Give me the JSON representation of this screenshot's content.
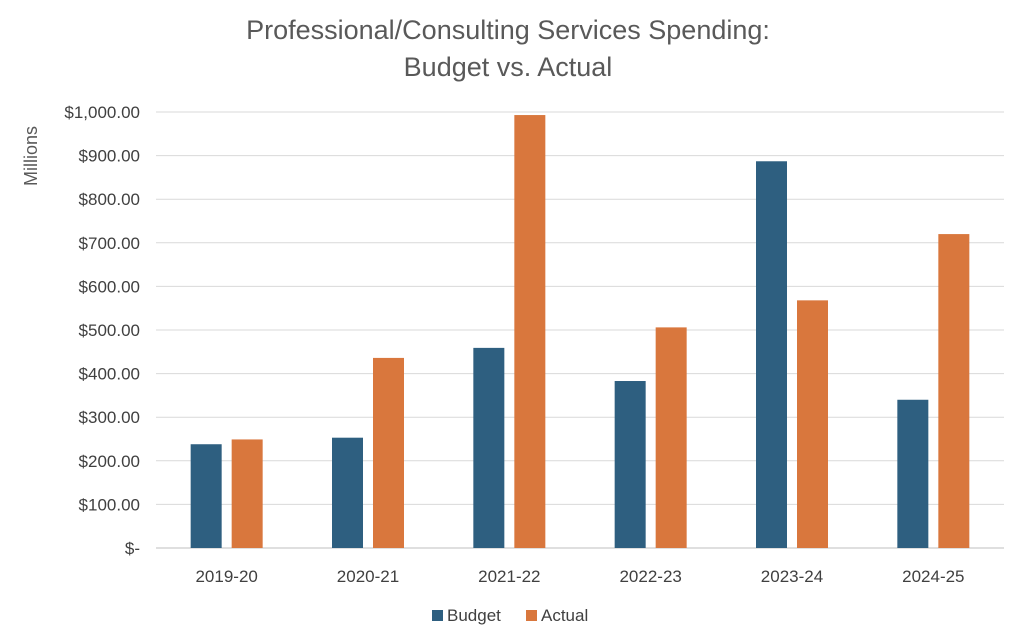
{
  "chart_data": {
    "type": "bar",
    "title_lines": [
      "Professional/Consulting Services Spending:",
      "Budget vs. Actual"
    ],
    "xlabel": "",
    "ylabel": "Millions",
    "categories": [
      "2019-20",
      "2020-21",
      "2021-22",
      "2022-23",
      "2023-24",
      "2024-25"
    ],
    "series": [
      {
        "name": "Budget",
        "values": [
          238,
          253,
          459,
          383,
          887,
          340
        ],
        "color": "#2E5F80"
      },
      {
        "name": "Actual",
        "values": [
          249,
          436,
          993,
          506,
          568,
          720
        ],
        "color": "#D9773D"
      }
    ],
    "ylim": [
      0,
      1000
    ],
    "yticks": [
      0,
      100,
      200,
      300,
      400,
      500,
      600,
      700,
      800,
      900,
      1000
    ],
    "ytick_labels": [
      "$-",
      "$100.00",
      "$200.00",
      "$300.00",
      "$400.00",
      "$500.00",
      "$600.00",
      "$700.00",
      "$800.00",
      "$900.00",
      "$1,000.00"
    ],
    "grid": true,
    "legend_position": "bottom"
  }
}
